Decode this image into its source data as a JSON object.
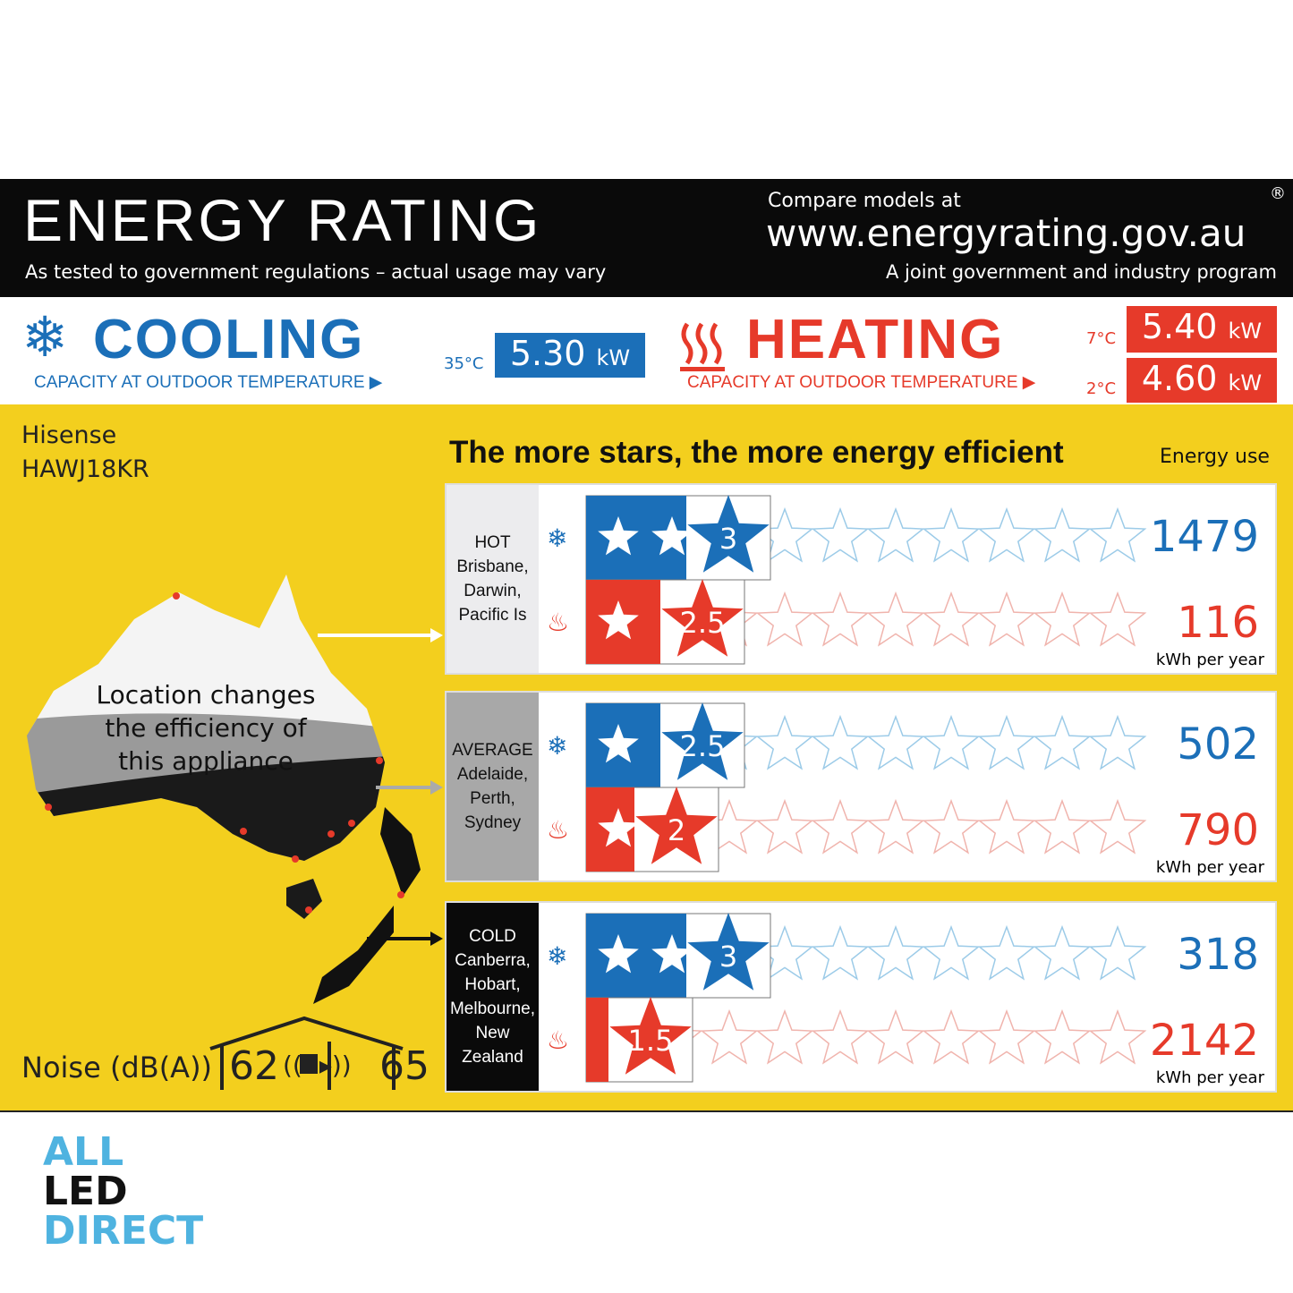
{
  "header": {
    "title": "ENERGY RATING",
    "subtitle": "As tested to government regulations – actual usage may vary",
    "compare": "Compare models at",
    "url": "www.energyrating.gov.au",
    "program": "A joint government and industry program",
    "registered": "®"
  },
  "cooling": {
    "label": "COOLING",
    "caption": "CAPACITY AT OUTDOOR TEMPERATURE ▶",
    "temp": "35°C",
    "value": "5.30",
    "unit": "kW",
    "color": "#1b6fb8"
  },
  "heating": {
    "label": "HEATING",
    "caption": "CAPACITY AT OUTDOOR TEMPERATURE ▶",
    "values": [
      {
        "temp": "7°C",
        "value": "5.40",
        "unit": "kW"
      },
      {
        "temp": "2°C",
        "value": "4.60",
        "unit": "kW"
      }
    ],
    "color": "#e63a2a"
  },
  "product": {
    "brand": "Hisense",
    "model": "HAWJ18KR"
  },
  "headline": "The more stars, the more energy efficient",
  "energy_use_label": "Energy use",
  "unit": "kWh per year",
  "map_text": [
    "Location changes",
    "the efficiency of",
    "this appliance"
  ],
  "zones": [
    {
      "name": "HOT",
      "cities": [
        "Brisbane,",
        "Darwin,",
        "Pacific Is"
      ],
      "cooling_stars": 3,
      "cooling_label": "3",
      "cooling_kwh": "1479",
      "heating_stars": 2.5,
      "heating_label": "2.5",
      "heating_kwh": "116"
    },
    {
      "name": "AVERAGE",
      "cities": [
        "Adelaide,",
        "Perth,",
        "Sydney"
      ],
      "cooling_stars": 2.5,
      "cooling_label": "2.5",
      "cooling_kwh": "502",
      "heating_stars": 2,
      "heating_label": "2",
      "heating_kwh": "790"
    },
    {
      "name": "COLD",
      "cities": [
        "Canberra,",
        "Hobart,",
        "Melbourne,",
        "New Zealand"
      ],
      "cooling_stars": 3,
      "cooling_label": "3",
      "cooling_kwh": "318",
      "heating_stars": 1.5,
      "heating_label": "1.5",
      "heating_kwh": "2142"
    }
  ],
  "noise": {
    "label": "Noise (dB(A))",
    "indoor": "62",
    "outdoor": "65"
  },
  "brand_logo": [
    "ALL",
    "LED",
    "DIRECT"
  ]
}
